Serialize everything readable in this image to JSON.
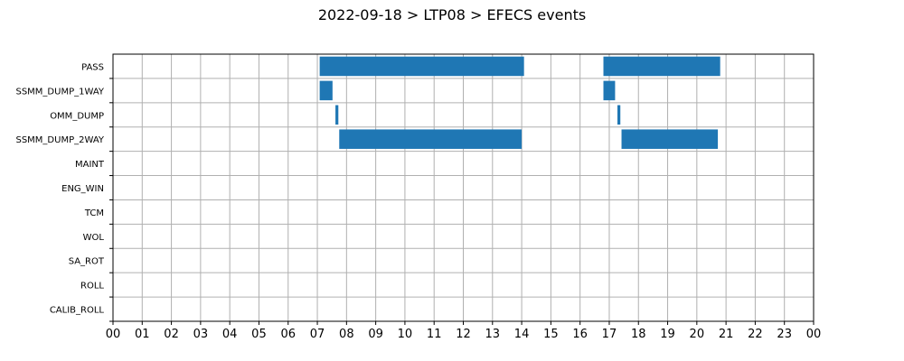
{
  "chart_data": {
    "type": "bar",
    "subtype": "timeline",
    "title": "2022-09-18 > LTP08 > EFECS events",
    "xlabel": "",
    "ylabel": "",
    "xlim": [
      0,
      24
    ],
    "xtick_labels": [
      "00",
      "01",
      "02",
      "03",
      "04",
      "05",
      "06",
      "07",
      "08",
      "09",
      "10",
      "11",
      "12",
      "13",
      "14",
      "15",
      "16",
      "17",
      "18",
      "19",
      "20",
      "21",
      "22",
      "23",
      "00"
    ],
    "categories": [
      "PASS",
      "SSMM_DUMP_1WAY",
      "OMM_DUMP",
      "SSMM_DUMP_2WAY",
      "MAINT",
      "ENG_WIN",
      "TCM",
      "WOL",
      "SA_ROT",
      "ROLL",
      "CALIB_ROLL"
    ],
    "grid": true,
    "bar_color": "#1f77b4",
    "events": [
      {
        "category": "PASS",
        "start": 7.08,
        "end": 14.08
      },
      {
        "category": "PASS",
        "start": 16.8,
        "end": 20.8
      },
      {
        "category": "SSMM_DUMP_1WAY",
        "start": 7.08,
        "end": 7.52
      },
      {
        "category": "SSMM_DUMP_1WAY",
        "start": 16.8,
        "end": 17.2
      },
      {
        "category": "OMM_DUMP",
        "start": 7.62,
        "end": 7.72
      },
      {
        "category": "OMM_DUMP",
        "start": 17.28,
        "end": 17.38
      },
      {
        "category": "SSMM_DUMP_2WAY",
        "start": 7.75,
        "end": 14.0
      },
      {
        "category": "SSMM_DUMP_2WAY",
        "start": 17.42,
        "end": 20.72
      }
    ]
  }
}
